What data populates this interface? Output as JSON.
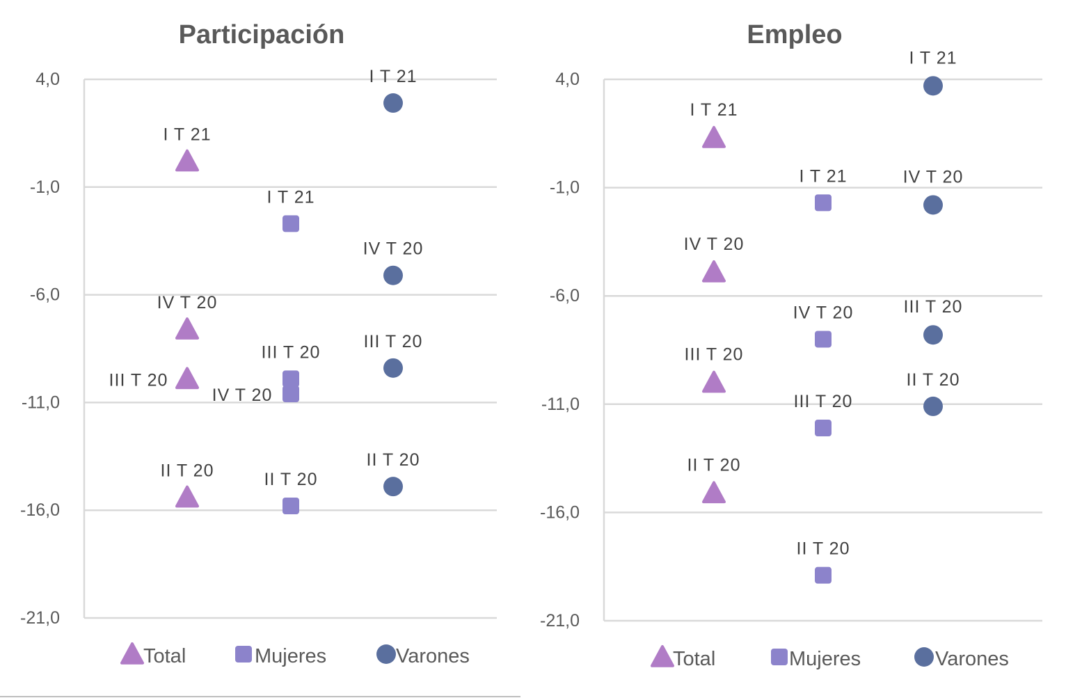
{
  "chart_data": [
    {
      "type": "scatter",
      "title": "Participación",
      "ylim": [
        -21.0,
        4.0
      ],
      "yticks": [
        "4,0",
        "-1,0",
        "-6,0",
        "-11,0",
        "-16,0",
        "-21,0"
      ],
      "ytick_values": [
        4,
        -1,
        -6,
        -11,
        -16,
        -21
      ],
      "grid": true,
      "legend": "bottom",
      "categories": [
        "Total",
        "Mujeres",
        "Varones"
      ],
      "series": [
        {
          "name": "Total",
          "marker": "triangle",
          "color": "#b07cc6",
          "points": [
            {
              "label": "II T 20",
              "value": -15.4
            },
            {
              "label": "III T 20",
              "value": -9.9
            },
            {
              "label": "IV T 20",
              "value": -7.6
            },
            {
              "label": "I T 21",
              "value": 0.2
            }
          ]
        },
        {
          "name": "Mujeres",
          "marker": "square",
          "color": "#8c83cb",
          "points": [
            {
              "label": "II T 20",
              "value": -15.8
            },
            {
              "label": "III T 20",
              "value": -9.9
            },
            {
              "label": "IV T 20",
              "value": -10.6
            },
            {
              "label": "I T 21",
              "value": -2.7
            }
          ]
        },
        {
          "name": "Varones",
          "marker": "circle",
          "color": "#5a6f9e",
          "points": [
            {
              "label": "II T 20",
              "value": -14.9
            },
            {
              "label": "III T 20",
              "value": -9.4
            },
            {
              "label": "IV T 20",
              "value": -5.1
            },
            {
              "label": "I T 21",
              "value": 2.9
            }
          ]
        }
      ]
    },
    {
      "type": "scatter",
      "title": "Empleo",
      "ylim": [
        -21.0,
        4.0
      ],
      "yticks": [
        "4,0",
        "-1,0",
        "-6,0",
        "-11,0",
        "-16,0",
        "-21,0"
      ],
      "ytick_values": [
        4,
        -1,
        -6,
        -11,
        -16,
        -21
      ],
      "grid": true,
      "legend": "bottom",
      "categories": [
        "Total",
        "Mujeres",
        "Varones"
      ],
      "series": [
        {
          "name": "Total",
          "marker": "triangle",
          "color": "#b07cc6",
          "points": [
            {
              "label": "II T 20",
              "value": -15.1
            },
            {
              "label": "III T 20",
              "value": -10.0
            },
            {
              "label": "IV T 20",
              "value": -4.9
            },
            {
              "label": "I T 21",
              "value": 1.3
            }
          ]
        },
        {
          "name": "Mujeres",
          "marker": "square",
          "color": "#8c83cb",
          "points": [
            {
              "label": "II T 20",
              "value": -18.9
            },
            {
              "label": "III T 20",
              "value": -12.1
            },
            {
              "label": "IV T 20",
              "value": -8.0
            },
            {
              "label": "I T 21",
              "value": -1.7
            }
          ]
        },
        {
          "name": "Varones",
          "marker": "circle",
          "color": "#5a6f9e",
          "points": [
            {
              "label": "II T 20",
              "value": -11.1
            },
            {
              "label": "III T 20",
              "value": -7.8
            },
            {
              "label": "IV T 20",
              "value": -1.8
            },
            {
              "label": "I T 21",
              "value": 3.7
            }
          ]
        }
      ]
    }
  ]
}
